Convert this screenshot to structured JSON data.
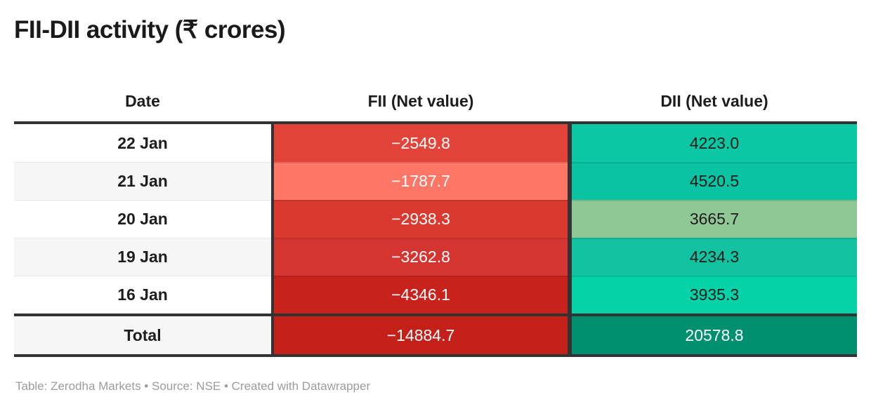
{
  "title": "FII-DII activity (₹ crores)",
  "table": {
    "columns": {
      "date": "Date",
      "fii": "FII (Net value)",
      "dii": "DII (Net value)"
    },
    "rows": [
      {
        "date": "22 Jan",
        "fii": "−2549.8",
        "dii": "4223.0",
        "fii_bg": "#e2443a",
        "dii_bg": "#0bc7a4"
      },
      {
        "date": "21 Jan",
        "fii": "−1787.7",
        "dii": "4520.5",
        "fii_bg": "#fd7666",
        "dii_bg": "#0ac3a2"
      },
      {
        "date": "20 Jan",
        "fii": "−2938.3",
        "dii": "3665.7",
        "fii_bg": "#d9392e",
        "dii_bg": "#90c895"
      },
      {
        "date": "19 Jan",
        "fii": "−3262.8",
        "dii": "4234.3",
        "fii_bg": "#d43531",
        "dii_bg": "#12c2a1"
      },
      {
        "date": "16 Jan",
        "fii": "−4346.1",
        "dii": "3935.3",
        "fii_bg": "#c7231c",
        "dii_bg": "#05d2a6"
      }
    ],
    "total": {
      "label": "Total",
      "fii": "−14884.7",
      "dii": "20578.8",
      "fii_bg": "#c32019",
      "dii_bg": "#00906f"
    }
  },
  "footer": "Table: Zerodha Markets • Source: NSE • Created with Datawrapper",
  "colors": {
    "border_dark": "#333333",
    "row_alt_bg": "#f6f6f6",
    "row_divider_light": "#e7e7e7",
    "title_text": "#1a1a1a",
    "footer_text": "#9c9c9c"
  },
  "chart_data": {
    "type": "table",
    "title": "FII-DII activity (₹ crores)",
    "columns": [
      "Date",
      "FII (Net value)",
      "DII (Net value)"
    ],
    "rows": [
      [
        "22 Jan",
        -2549.8,
        4223.0
      ],
      [
        "21 Jan",
        -1787.7,
        4520.5
      ],
      [
        "20 Jan",
        -2938.3,
        3665.7
      ],
      [
        "19 Jan",
        -3262.8,
        4234.3
      ],
      [
        "16 Jan",
        -4346.1,
        3935.3
      ],
      [
        "Total",
        -14884.7,
        20578.8
      ]
    ],
    "layout_hints": "heatmap-colored value cells: red shades for negative FII values (white text), green/teal shades for positive DII values (dark text, white on total); alternating white/gray date column; bold total row separated by dark rules"
  }
}
